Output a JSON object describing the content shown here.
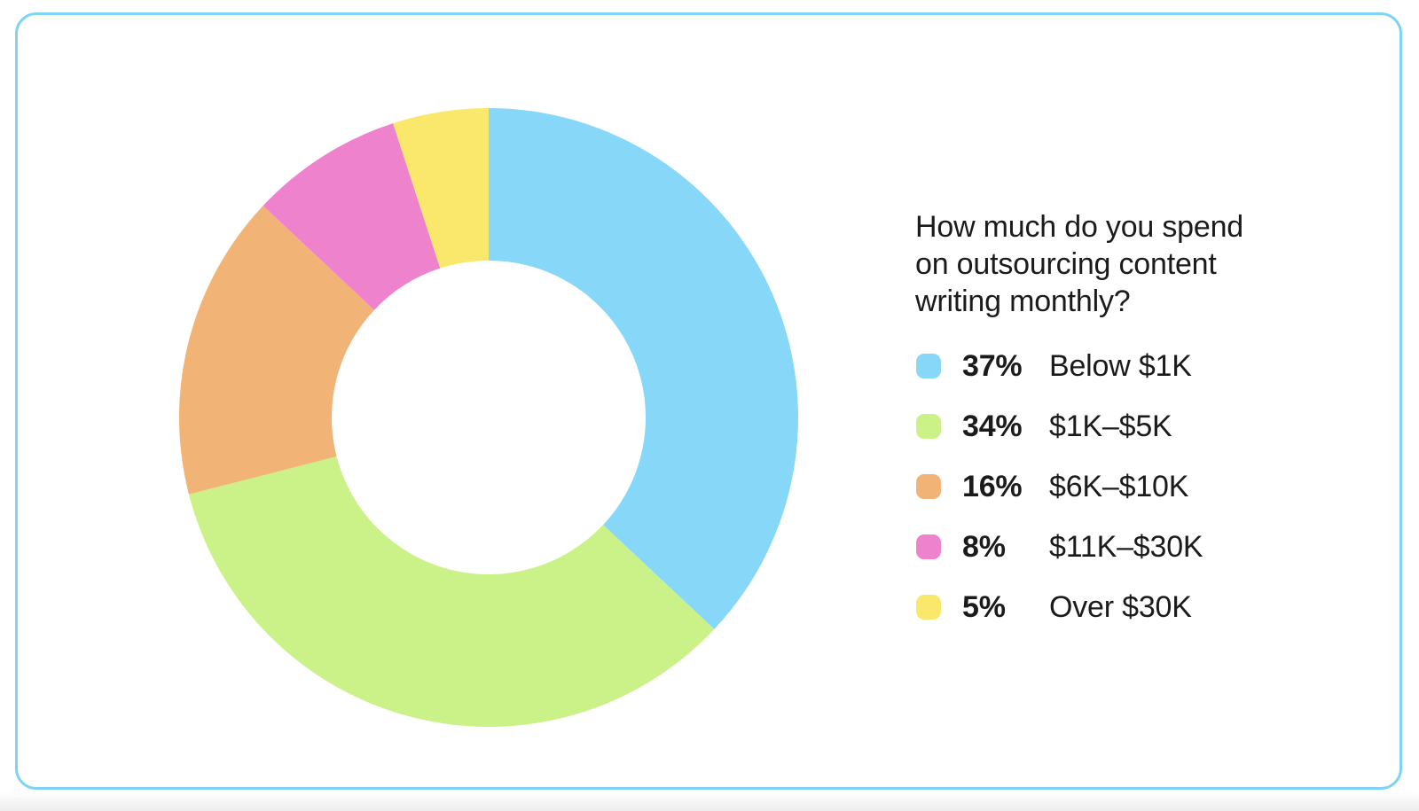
{
  "page": {
    "background_color": "#ffffff",
    "card_border_color": "#7FD4F6"
  },
  "chart_data": {
    "type": "pie",
    "subtype": "donut",
    "title": "How much do you spend on outsourcing content writing monthly?",
    "title_lines": [
      "How much do you spend",
      "on outsourcing content",
      "writing monthly?"
    ],
    "legend_position": "right",
    "start_angle_deg": 0,
    "direction": "clockwise",
    "inner_radius_ratio": 0.5,
    "grid": false,
    "categories": [
      "Below $1K",
      "$1K–$5K",
      "$6K–$10K",
      "$11K–$30K",
      "Over $30K"
    ],
    "values": [
      37,
      34,
      16,
      8,
      5
    ],
    "segments": [
      {
        "pct": 37,
        "pct_label": "37%",
        "label": "Below $1K",
        "color": "#87D8F8"
      },
      {
        "pct": 34,
        "pct_label": "34%",
        "label": "$1K–$5K",
        "color": "#CBF189"
      },
      {
        "pct": 16,
        "pct_label": "16%",
        "label": "$6K–$10K",
        "color": "#F2B476"
      },
      {
        "pct": 8,
        "pct_label": "8%",
        "label": "$11K–$30K",
        "color": "#EE82CD"
      },
      {
        "pct": 5,
        "pct_label": "5%",
        "label": "Over $30K",
        "color": "#F9E86B"
      }
    ]
  }
}
